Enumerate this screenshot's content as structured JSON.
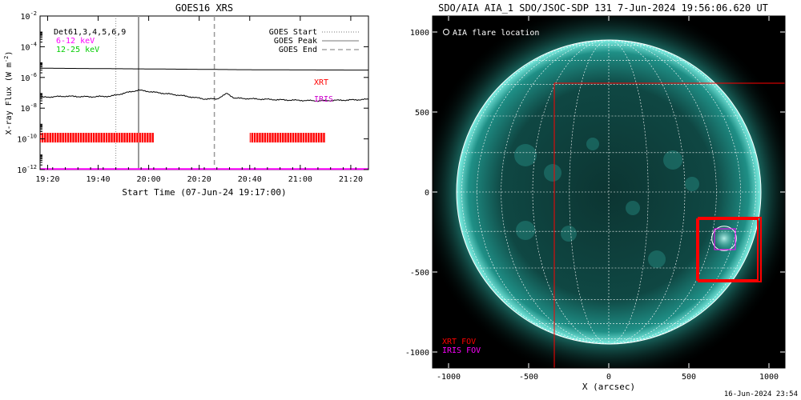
{
  "chart_data": [
    {
      "type": "line",
      "title": "GOES16 XRS",
      "xlabel": "Start Time (07-Jun-24 19:17:00)",
      "ylabel": "X-ray Flux (W m",
      "ylabel_sup": "-2",
      "ylabel_close": ")",
      "ylog": true,
      "ylim": [
        1e-12,
        0.01
      ],
      "xlim_minutes": [
        0,
        130
      ],
      "x_tick_labels": [
        "19:20",
        "19:40",
        "20:00",
        "20:20",
        "20:40",
        "21:00",
        "21:20"
      ],
      "x_tick_minutes": [
        3,
        23,
        43,
        63,
        83,
        103,
        123
      ],
      "y_tick_exponents": [
        -12,
        -10,
        -8,
        -6,
        -4,
        -2
      ],
      "y_tick_base": "10",
      "annotation": "Det61,3,4,5,6,9",
      "channel_labels": [
        {
          "text": "6-12 keV",
          "color": "#ff00ff"
        },
        {
          "text": "12-25 keV",
          "color": "#00cc00"
        }
      ],
      "legend": [
        {
          "label": "GOES Start",
          "style": "dotted"
        },
        {
          "label": "GOES Peak",
          "style": "solid"
        },
        {
          "label": "GOES End",
          "style": "dashed"
        }
      ],
      "legend_position": "top-right",
      "markers": {
        "goes_start_min": 30,
        "goes_peak_min": 39,
        "goes_end_min": 69
      },
      "series": [
        {
          "color": "#000000",
          "x_minutes": [
            0,
            20,
            40,
            60,
            80,
            100,
            130
          ],
          "values": [
            4e-06,
            3.8e-06,
            3.6e-06,
            3.4e-06,
            3.2e-06,
            3.1e-06,
            3e-06
          ]
        },
        {
          "color": "#000000",
          "x_minutes": [
            0,
            10,
            20,
            28,
            34,
            39,
            45,
            55,
            65,
            70,
            72,
            74,
            77,
            85,
            95,
            110,
            125,
            130
          ],
          "values": [
            5e-08,
            6e-08,
            5.5e-08,
            6e-08,
            1e-07,
            1.5e-07,
            1.1e-07,
            7e-08,
            4e-08,
            4e-08,
            6e-08,
            9e-08,
            4.5e-08,
            4e-08,
            3.5e-08,
            3e-08,
            3.5e-08,
            3.8e-08
          ]
        },
        {
          "color": "#ff00ff",
          "x_minutes": [
            0,
            130
          ],
          "values": [
            1.1e-12,
            1.1e-12
          ]
        }
      ],
      "instruments": [
        {
          "label": "XRT",
          "color": "#ff0000",
          "rows": "ticks",
          "intervals_minutes": [
            [
              0,
              45
            ],
            [
              83,
              113
            ]
          ],
          "level": 1.2e-10
        },
        {
          "label": "IRIS",
          "color": "#cc00cc",
          "intervals_minutes": []
        }
      ]
    },
    {
      "type": "scatter",
      "title": "SDO/AIA AIA_1 SDO/JSOC-SDP 131  7-Jun-2024 19:56:06.620 UT",
      "xlabel": "X (arcsec)",
      "ylabel": "",
      "xlim": [
        -1100,
        1100
      ],
      "ylim": [
        -1100,
        1100
      ],
      "x_ticks": [
        -1000,
        -500,
        0,
        500,
        1000
      ],
      "y_ticks": [
        -1000,
        -500,
        0,
        500,
        1000
      ],
      "solar_radius_arcsec": 950,
      "legend_top": "AIA flare location",
      "fov_labels": [
        {
          "text": "XRT FOV",
          "color": "#ff0000"
        },
        {
          "text": "IRIS FOV",
          "color": "#ff00ff"
        }
      ],
      "flare_location": {
        "x": 720,
        "y": -290,
        "r": 90
      },
      "xrt_fov": [
        {
          "x0": -340,
          "x1": 1100,
          "y0": 680,
          "y1": -1100
        },
        {
          "x0": 560,
          "x1": 950,
          "y0": -160,
          "y1": -560
        },
        {
          "x0": 550,
          "x1": 930,
          "y0": -170,
          "y1": -550
        }
      ],
      "iris_fov": {
        "x0": 660,
        "x1": 790,
        "y0": -230,
        "y1": -360
      },
      "footer": "16-Jun-2024 23:54"
    }
  ]
}
